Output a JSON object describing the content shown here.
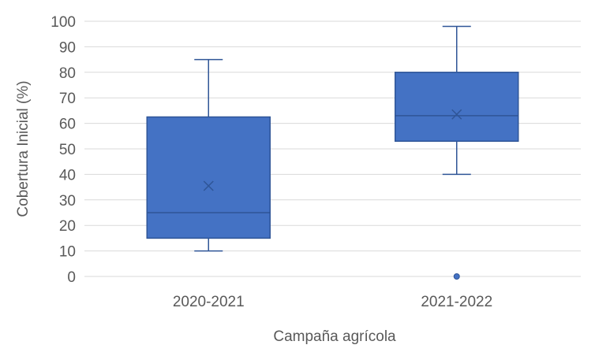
{
  "chart_data": {
    "type": "boxplot",
    "xlabel": "Campaña agrícola",
    "ylabel": "Cobertura Inicial (%)",
    "ylim": [
      0,
      100
    ],
    "yticks": [
      0,
      10,
      20,
      30,
      40,
      50,
      60,
      70,
      80,
      90,
      100
    ],
    "categories": [
      "2020-2021",
      "2021-2022"
    ],
    "boxes": [
      {
        "category": "2020-2021",
        "min": 10,
        "q1": 15,
        "median": 25,
        "q3": 62.5,
        "max": 85,
        "mean": 35.5,
        "outliers": []
      },
      {
        "category": "2021-2022",
        "min": 40,
        "q1": 53,
        "median": 63,
        "q3": 80,
        "max": 98,
        "mean": 63.5,
        "outliers": [
          0
        ]
      }
    ],
    "grid": true,
    "colors": {
      "box_fill": "#4472C4",
      "box_stroke": "#2F5597",
      "grid": "#D9D9D9",
      "text": "#595959"
    }
  }
}
